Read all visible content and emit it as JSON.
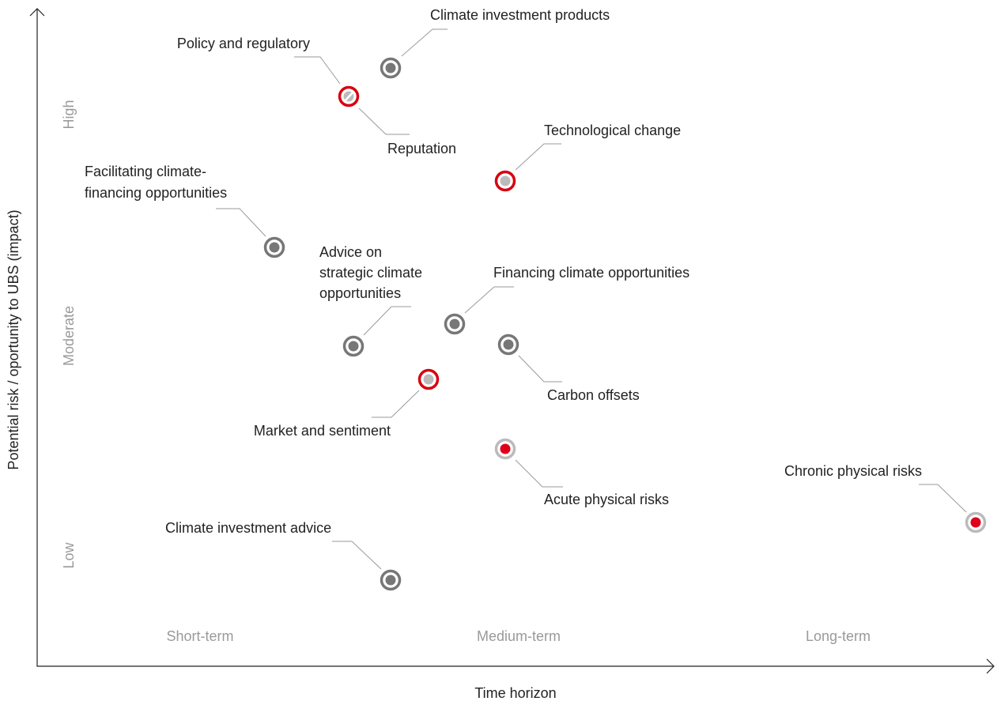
{
  "axes": {
    "y_title": "Potential risk / oportunity to UBS (impact)",
    "x_title": "Time horizon",
    "y_levels": [
      "High",
      "Moderate",
      "Low"
    ],
    "x_levels": [
      "Short-term",
      "Medium-term",
      "Long-term"
    ]
  },
  "nodes": [
    {
      "lines": [
        "Climate investment products"
      ]
    },
    {
      "lines": [
        "Policy and regulatory"
      ]
    },
    {
      "lines": [
        "Reputation"
      ]
    },
    {
      "lines": [
        "Technological change"
      ]
    },
    {
      "lines": [
        "Facilitating climate-",
        "financing opportunities"
      ]
    },
    {
      "lines": [
        "Advice on",
        "strategic climate",
        "opportunities"
      ]
    },
    {
      "lines": [
        "Financing climate opportunities"
      ]
    },
    {
      "lines": [
        "Carbon offsets"
      ]
    },
    {
      "lines": [
        "Market and sentiment"
      ]
    },
    {
      "lines": [
        "Acute physical risks"
      ]
    },
    {
      "lines": [
        "Chronic physical risks"
      ]
    },
    {
      "lines": [
        "Climate investment advice"
      ]
    }
  ]
}
